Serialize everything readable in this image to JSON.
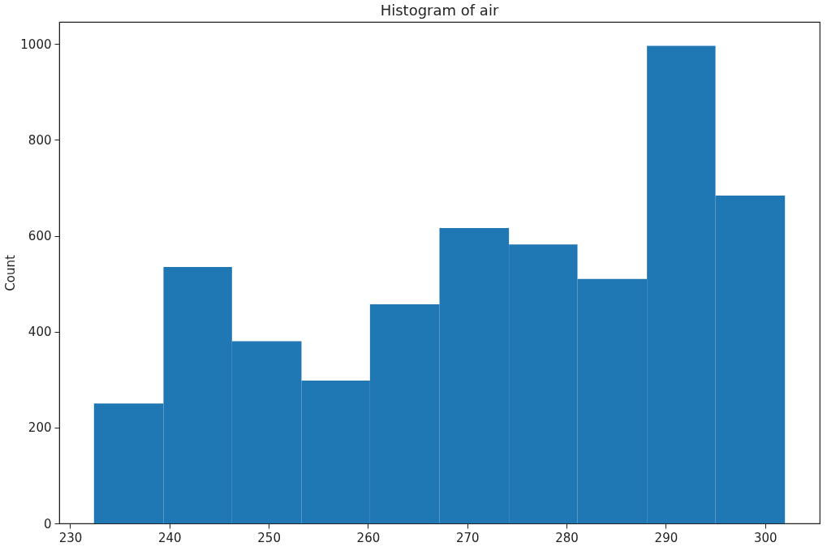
{
  "chart_data": {
    "type": "histogram",
    "title": "Histogram of air",
    "ylabel": "Count",
    "bins": [
      232.4,
      239.4,
      246.3,
      253.3,
      260.2,
      267.2,
      274.2,
      281.1,
      288.1,
      295.0,
      302.0
    ],
    "values": [
      250,
      535,
      380,
      298,
      457,
      616,
      582,
      510,
      996,
      684
    ],
    "color": "#1f77b4",
    "xlim": [
      228.9,
      305.5
    ],
    "xticks": [
      230,
      240,
      250,
      260,
      270,
      280,
      290,
      300
    ],
    "ylim": [
      0,
      1046
    ],
    "yticks": [
      0,
      200,
      400,
      600,
      800,
      1000
    ],
    "grid": false
  }
}
